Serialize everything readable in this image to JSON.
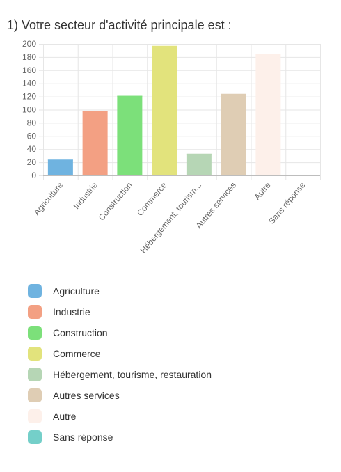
{
  "title": "1) Votre secteur d'activité principale est :",
  "chart_data": {
    "type": "bar",
    "categories": [
      "Agriculture",
      "Industrie",
      "Construction",
      "Commerce",
      "Hébergement, tourism...",
      "Autres services",
      "Autre",
      "Sans réponse"
    ],
    "values": [
      24,
      98,
      121,
      197,
      33,
      124,
      185,
      0
    ],
    "colors": [
      "#6fb3e0",
      "#f3a083",
      "#7ce07a",
      "#e2e37c",
      "#b6d6b5",
      "#dfcdb4",
      "#fdf0ea",
      "#74cfc9"
    ],
    "ylim": [
      0,
      200
    ],
    "yticks": [
      0,
      20,
      40,
      60,
      80,
      100,
      120,
      140,
      160,
      180,
      200
    ],
    "grid": true,
    "legend_position": "bottom"
  },
  "legend": [
    {
      "label": "Agriculture",
      "color": "#6fb3e0"
    },
    {
      "label": "Industrie",
      "color": "#f3a083"
    },
    {
      "label": "Construction",
      "color": "#7ce07a"
    },
    {
      "label": "Commerce",
      "color": "#e2e37c"
    },
    {
      "label": "Hébergement, tourisme, restauration",
      "color": "#b6d6b5"
    },
    {
      "label": "Autres services",
      "color": "#dfcdb4"
    },
    {
      "label": "Autre",
      "color": "#fdf0ea"
    },
    {
      "label": "Sans réponse",
      "color": "#74cfc9"
    }
  ]
}
